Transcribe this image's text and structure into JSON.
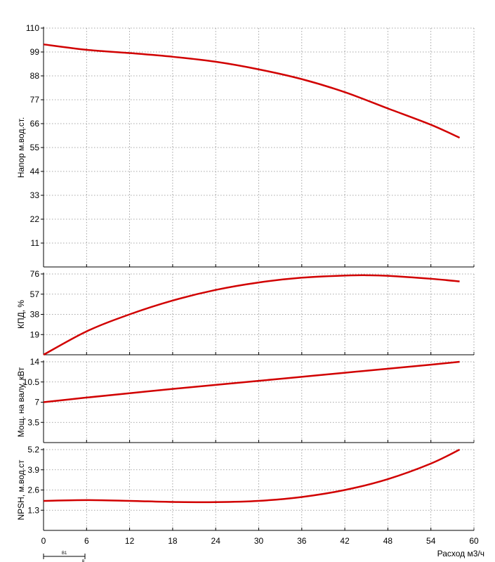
{
  "chart_data": {
    "type": "line",
    "x_label": "Расход м3/ч",
    "x_ticks": [
      "0",
      "6",
      "12",
      "18",
      "24",
      "30",
      "36",
      "42",
      "48",
      "54",
      "60"
    ],
    "xlim": [
      0,
      60
    ],
    "panels": [
      {
        "id": "head",
        "ylabel": "Напор м.вод.ст.",
        "ylim": [
          0,
          110
        ],
        "y_ticks": [
          "11",
          "22",
          "33",
          "44",
          "55",
          "66",
          "77",
          "88",
          "99",
          "110"
        ],
        "series": [
          {
            "color": "#d10000",
            "x": [
              0,
              6,
              12,
              18,
              24,
              30,
              36,
              42,
              48,
              54,
              58
            ],
            "y": [
              102.5,
              100.0,
              98.5,
              96.8,
              94.5,
              91.0,
              86.5,
              80.5,
              73.0,
              65.5,
              59.5
            ]
          }
        ]
      },
      {
        "id": "efficiency",
        "ylabel": "КПД, %",
        "ylim": [
          0,
          76
        ],
        "y_ticks": [
          "19",
          "38",
          "57",
          "76"
        ],
        "series": [
          {
            "color": "#d10000",
            "x": [
              0,
              6,
              12,
              18,
              24,
              30,
              36,
              42,
              45,
              48,
              54,
              58
            ],
            "y": [
              0,
              22,
              38,
              51,
              61,
              68,
              72.5,
              74.5,
              74.8,
              74.3,
              71.5,
              69.0
            ]
          }
        ]
      },
      {
        "id": "power",
        "ylabel": "Мощ. на валу, кВт",
        "ylim": [
          0,
          14
        ],
        "y_ticks": [
          "3.5",
          "7",
          "10.5",
          "14"
        ],
        "series": [
          {
            "color": "#d10000",
            "x": [
              0,
              6,
              12,
              18,
              24,
              30,
              36,
              42,
              48,
              54,
              58
            ],
            "y": [
              7.0,
              7.8,
              8.55,
              9.3,
              10.0,
              10.7,
              11.4,
              12.1,
              12.8,
              13.5,
              14.0
            ]
          }
        ]
      },
      {
        "id": "npsh",
        "ylabel": "NPSH, м.вод.ст",
        "ylim": [
          0,
          5.2
        ],
        "y_ticks": [
          "1.3",
          "2.6",
          "3.9",
          "5.2"
        ],
        "series": [
          {
            "color": "#d10000",
            "x": [
              0,
              6,
              12,
              18,
              24,
              30,
              36,
              42,
              48,
              54,
              58
            ],
            "y": [
              1.9,
              1.95,
              1.9,
              1.83,
              1.82,
              1.9,
              2.15,
              2.6,
              3.3,
              4.3,
              5.2
            ]
          }
        ]
      }
    ],
    "annotation": {
      "label": "B1",
      "range": [
        0,
        6
      ]
    }
  }
}
